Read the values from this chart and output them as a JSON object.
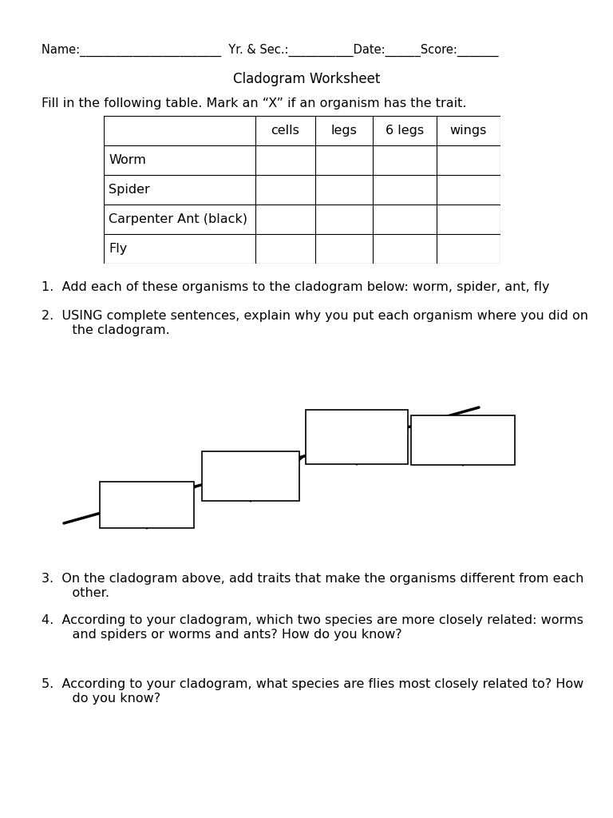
{
  "title": "Cladogram Worksheet",
  "header_line": "Name:________________________  Yr. & Sec.:___________Date:______Score:_______",
  "instruction": "Fill in the following table. Mark an “X” if an organism has the trait.",
  "table_col_headers": [
    "cells",
    "legs",
    "6 legs",
    "wings"
  ],
  "table_rows": [
    "Worm",
    "Spider",
    "Carpenter Ant (black)",
    "Fly"
  ],
  "q1": "1.  Add each of these organisms to the cladogram below: worm, spider, ant, fly",
  "q2a": "2.  USING complete sentences, explain why you put each organism where you did on",
  "q2b": "    the cladogram.",
  "q3a": "3.  On the cladogram above, add traits that make the organisms different from each",
  "q3b": "    other.",
  "q4a": "4.  According to your cladogram, which two species are more closely related: worms",
  "q4b": "    and spiders or worms and ants? How do you know?",
  "q5a": "5.  According to your cladogram, what species are flies most closely related to? How",
  "q5b": "    do you know?",
  "bg_color": "#ffffff",
  "text_color": "#000000",
  "font_size": 11.5,
  "title_font_size": 12
}
